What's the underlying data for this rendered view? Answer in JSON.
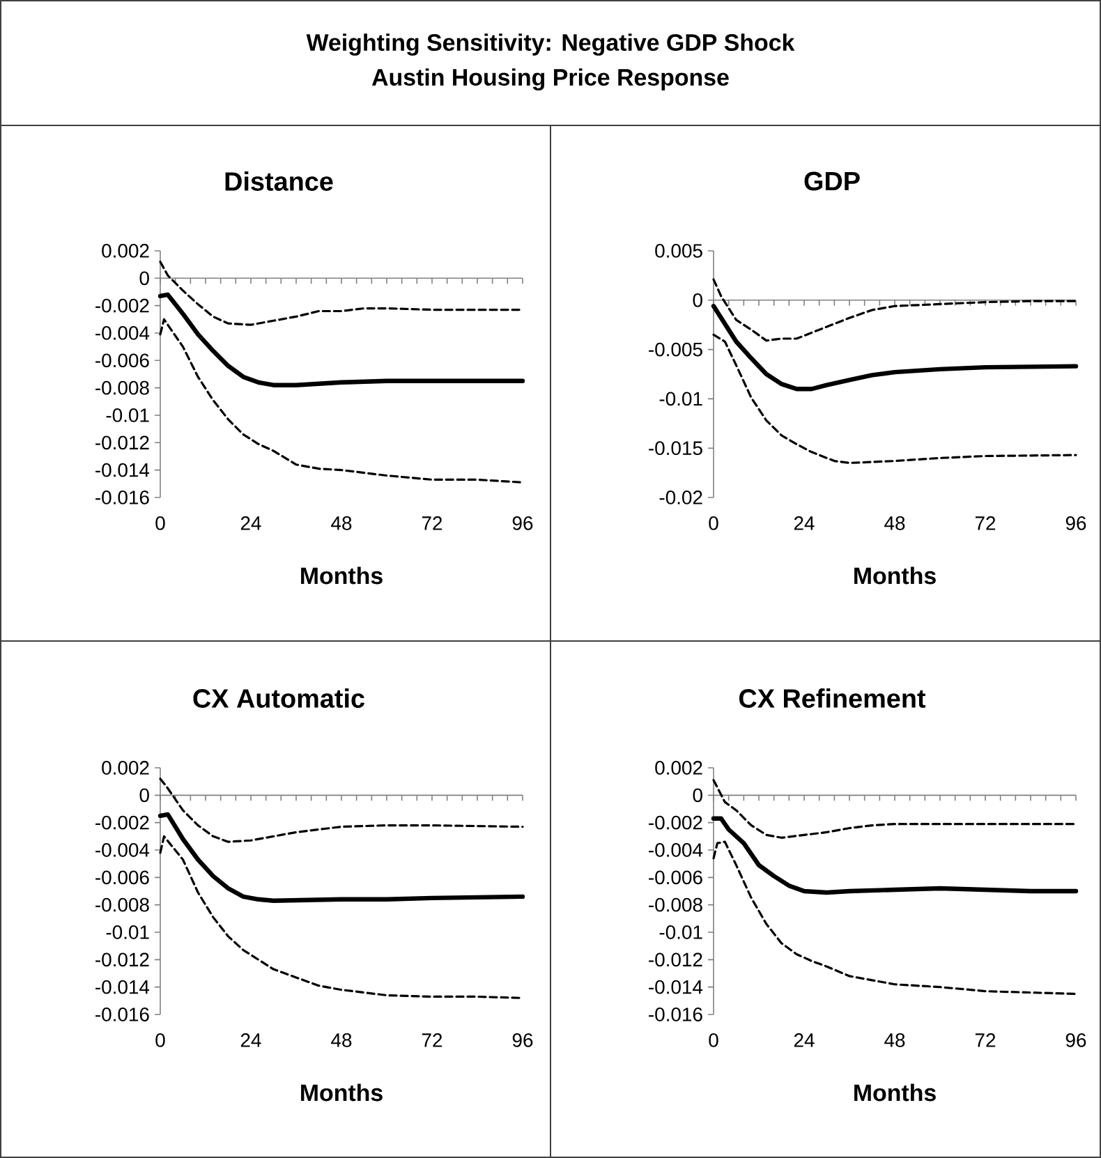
{
  "chart_data": [
    {
      "type": "other",
      "title": "Weighting Sensitivity: Negative GDP Shock",
      "subtitle": "Austin Housing Price Response"
    },
    {
      "type": "line",
      "title": "Distance",
      "xlabel": "Months",
      "xlim": [
        0,
        96
      ],
      "ylim": [
        -0.016,
        0.002
      ],
      "xticks": [
        0,
        {
          "value": 4,
          "label": null
        },
        {
          "value": 8,
          "label": null
        },
        {
          "value": 12,
          "label": null
        },
        {
          "value": 16,
          "label": null
        },
        {
          "value": 20,
          "label": null
        },
        24,
        {
          "value": 28,
          "label": null
        },
        {
          "value": 32,
          "label": null
        },
        {
          "value": 36,
          "label": null
        },
        {
          "value": 40,
          "label": null
        },
        {
          "value": 44,
          "label": null
        },
        48,
        {
          "value": 52,
          "label": null
        },
        {
          "value": 56,
          "label": null
        },
        {
          "value": 60,
          "label": null
        },
        {
          "value": 64,
          "label": null
        },
        {
          "value": 68,
          "label": null
        },
        72,
        {
          "value": 76,
          "label": null
        },
        {
          "value": 80,
          "label": null
        },
        {
          "value": 84,
          "label": null
        },
        {
          "value": 88,
          "label": null
        },
        {
          "value": 92,
          "label": null
        },
        96
      ],
      "yticks": [
        0.002,
        0,
        -0.002,
        -0.004,
        -0.006,
        -0.008,
        -0.01,
        -0.012,
        -0.014,
        -0.016
      ],
      "series": [
        {
          "color": "#000000",
          "line_style": "solid",
          "x": [
            0,
            2,
            6,
            10,
            14,
            18,
            22,
            26,
            30,
            36,
            48,
            60,
            72,
            96
          ],
          "values": [
            -0.0013,
            -0.0012,
            -0.0026,
            -0.0041,
            -0.0053,
            -0.0064,
            -0.0072,
            -0.0076,
            -0.0078,
            -0.0078,
            -0.0076,
            -0.0075,
            -0.0075,
            -0.0075
          ]
        },
        {
          "color": "#000000",
          "line_style": "dashed",
          "x": [
            0,
            2,
            6,
            10,
            14,
            18,
            24,
            30,
            36,
            42,
            48,
            54,
            60,
            72,
            96
          ],
          "values": [
            0.0012,
            0.0002,
            -0.0009,
            -0.0019,
            -0.0028,
            -0.0033,
            -0.0034,
            -0.0031,
            -0.0028,
            -0.0024,
            -0.0024,
            -0.0022,
            -0.0022,
            -0.0023,
            -0.0023
          ]
        },
        {
          "color": "#000000",
          "line_style": "dashed",
          "x": [
            0,
            1,
            6,
            10,
            14,
            18,
            22,
            26,
            30,
            36,
            42,
            48,
            60,
            72,
            84,
            96
          ],
          "values": [
            -0.0041,
            -0.003,
            -0.005,
            -0.0072,
            -0.0089,
            -0.0103,
            -0.0114,
            -0.0121,
            -0.0126,
            -0.0136,
            -0.0139,
            -0.014,
            -0.0144,
            -0.0147,
            -0.0147,
            -0.0149
          ]
        }
      ]
    },
    {
      "type": "line",
      "title": "GDP",
      "xlabel": "Months",
      "xlim": [
        0,
        96
      ],
      "ylim": [
        -0.02,
        0.005
      ],
      "xticks": [
        0,
        {
          "value": 4,
          "label": null
        },
        {
          "value": 8,
          "label": null
        },
        {
          "value": 12,
          "label": null
        },
        {
          "value": 16,
          "label": null
        },
        {
          "value": 20,
          "label": null
        },
        24,
        {
          "value": 28,
          "label": null
        },
        {
          "value": 32,
          "label": null
        },
        {
          "value": 36,
          "label": null
        },
        {
          "value": 40,
          "label": null
        },
        {
          "value": 44,
          "label": null
        },
        48,
        {
          "value": 52,
          "label": null
        },
        {
          "value": 56,
          "label": null
        },
        {
          "value": 60,
          "label": null
        },
        {
          "value": 64,
          "label": null
        },
        {
          "value": 68,
          "label": null
        },
        72,
        {
          "value": 76,
          "label": null
        },
        {
          "value": 80,
          "label": null
        },
        {
          "value": 84,
          "label": null
        },
        {
          "value": 88,
          "label": null
        },
        {
          "value": 92,
          "label": null
        },
        96
      ],
      "yticks": [
        0.005,
        0,
        -0.005,
        -0.01,
        -0.015,
        -0.02
      ],
      "series": [
        {
          "color": "#000000",
          "line_style": "solid",
          "x": [
            0,
            2,
            6,
            10,
            14,
            18,
            22,
            26,
            30,
            36,
            42,
            48,
            60,
            72,
            96
          ],
          "values": [
            -0.0006,
            -0.0018,
            -0.0042,
            -0.0059,
            -0.0075,
            -0.0085,
            -0.009,
            -0.009,
            -0.0086,
            -0.0081,
            -0.0076,
            -0.0073,
            -0.007,
            -0.0068,
            -0.0067
          ]
        },
        {
          "color": "#000000",
          "line_style": "dashed",
          "x": [
            0,
            2,
            6,
            10,
            14,
            18,
            22,
            30,
            36,
            42,
            48,
            60,
            72,
            84,
            96
          ],
          "values": [
            0.0021,
            0.0004,
            -0.002,
            -0.003,
            -0.0041,
            -0.0039,
            -0.0039,
            -0.0027,
            -0.0018,
            -0.001,
            -0.0006,
            -0.0004,
            -0.0002,
            -0.0001,
            -0.0001
          ]
        },
        {
          "color": "#000000",
          "line_style": "dashed",
          "x": [
            0,
            3,
            6,
            10,
            14,
            18,
            22,
            26,
            32,
            36,
            48,
            60,
            72,
            96
          ],
          "values": [
            -0.0035,
            -0.0042,
            -0.0066,
            -0.0099,
            -0.0122,
            -0.0137,
            -0.0146,
            -0.0154,
            -0.0163,
            -0.0165,
            -0.0163,
            -0.016,
            -0.0158,
            -0.0157
          ]
        }
      ]
    },
    {
      "type": "line",
      "title": "CX Automatic",
      "xlabel": "Months",
      "xlim": [
        0,
        96
      ],
      "ylim": [
        -0.016,
        0.002
      ],
      "xticks": [
        0,
        {
          "value": 4,
          "label": null
        },
        {
          "value": 8,
          "label": null
        },
        {
          "value": 12,
          "label": null
        },
        {
          "value": 16,
          "label": null
        },
        {
          "value": 20,
          "label": null
        },
        24,
        {
          "value": 28,
          "label": null
        },
        {
          "value": 32,
          "label": null
        },
        {
          "value": 36,
          "label": null
        },
        {
          "value": 40,
          "label": null
        },
        {
          "value": 44,
          "label": null
        },
        48,
        {
          "value": 52,
          "label": null
        },
        {
          "value": 56,
          "label": null
        },
        {
          "value": 60,
          "label": null
        },
        {
          "value": 64,
          "label": null
        },
        {
          "value": 68,
          "label": null
        },
        72,
        {
          "value": 76,
          "label": null
        },
        {
          "value": 80,
          "label": null
        },
        {
          "value": 84,
          "label": null
        },
        {
          "value": 88,
          "label": null
        },
        {
          "value": 92,
          "label": null
        },
        96
      ],
      "yticks": [
        0.002,
        0,
        -0.002,
        -0.004,
        -0.006,
        -0.008,
        -0.01,
        -0.012,
        -0.014,
        -0.016
      ],
      "series": [
        {
          "color": "#000000",
          "line_style": "solid",
          "x": [
            0,
            2,
            6,
            10,
            14,
            18,
            22,
            26,
            30,
            48,
            60,
            72,
            96
          ],
          "values": [
            -0.0015,
            -0.0014,
            -0.0032,
            -0.0047,
            -0.0059,
            -0.0068,
            -0.0074,
            -0.0076,
            -0.0077,
            -0.0076,
            -0.0076,
            -0.0075,
            -0.0074
          ]
        },
        {
          "color": "#000000",
          "line_style": "dashed",
          "x": [
            0,
            2,
            6,
            10,
            14,
            18,
            24,
            30,
            36,
            42,
            48,
            60,
            72,
            96
          ],
          "values": [
            0.0012,
            0.0005,
            -0.0011,
            -0.0022,
            -0.003,
            -0.0034,
            -0.0033,
            -0.003,
            -0.0027,
            -0.0025,
            -0.0023,
            -0.0022,
            -0.0022,
            -0.0023
          ]
        },
        {
          "color": "#000000",
          "line_style": "dashed",
          "x": [
            0,
            1,
            6,
            10,
            14,
            18,
            22,
            26,
            30,
            36,
            42,
            48,
            60,
            72,
            84,
            96
          ],
          "values": [
            -0.0042,
            -0.003,
            -0.0047,
            -0.0071,
            -0.0089,
            -0.0103,
            -0.0113,
            -0.012,
            -0.0127,
            -0.0133,
            -0.0139,
            -0.0142,
            -0.0146,
            -0.0147,
            -0.0147,
            -0.0148
          ]
        }
      ]
    },
    {
      "type": "line",
      "title": "CX Refinement",
      "xlabel": "Months",
      "xlim": [
        0,
        96
      ],
      "ylim": [
        -0.016,
        0.002
      ],
      "xticks": [
        0,
        {
          "value": 4,
          "label": null
        },
        {
          "value": 8,
          "label": null
        },
        {
          "value": 12,
          "label": null
        },
        {
          "value": 16,
          "label": null
        },
        {
          "value": 20,
          "label": null
        },
        24,
        {
          "value": 28,
          "label": null
        },
        {
          "value": 32,
          "label": null
        },
        {
          "value": 36,
          "label": null
        },
        {
          "value": 40,
          "label": null
        },
        {
          "value": 44,
          "label": null
        },
        48,
        {
          "value": 52,
          "label": null
        },
        {
          "value": 56,
          "label": null
        },
        {
          "value": 60,
          "label": null
        },
        {
          "value": 64,
          "label": null
        },
        {
          "value": 68,
          "label": null
        },
        72,
        {
          "value": 76,
          "label": null
        },
        {
          "value": 80,
          "label": null
        },
        {
          "value": 84,
          "label": null
        },
        {
          "value": 88,
          "label": null
        },
        {
          "value": 92,
          "label": null
        },
        96
      ],
      "yticks": [
        0.002,
        0,
        -0.002,
        -0.004,
        -0.006,
        -0.008,
        -0.01,
        -0.012,
        -0.014,
        -0.016
      ],
      "series": [
        {
          "color": "#000000",
          "line_style": "solid",
          "x": [
            0,
            2,
            4,
            8,
            12,
            16,
            20,
            24,
            30,
            36,
            48,
            60,
            72,
            84,
            96
          ],
          "values": [
            -0.0017,
            -0.0017,
            -0.0025,
            -0.0035,
            -0.0051,
            -0.0059,
            -0.0066,
            -0.007,
            -0.0071,
            -0.007,
            -0.0069,
            -0.0068,
            -0.0069,
            -0.007,
            -0.007
          ]
        },
        {
          "color": "#000000",
          "line_style": "dashed",
          "x": [
            0,
            3,
            6,
            10,
            14,
            18,
            24,
            30,
            36,
            42,
            48,
            60,
            72,
            96
          ],
          "values": [
            0.0011,
            -0.0005,
            -0.0011,
            -0.0022,
            -0.0029,
            -0.0031,
            -0.0029,
            -0.0027,
            -0.0024,
            -0.0022,
            -0.0021,
            -0.0021,
            -0.0021,
            -0.0021
          ]
        },
        {
          "color": "#000000",
          "line_style": "dashed",
          "x": [
            0,
            1,
            3,
            6,
            10,
            14,
            18,
            22,
            26,
            30,
            36,
            42,
            48,
            60,
            72,
            84,
            96
          ],
          "values": [
            -0.0046,
            -0.0035,
            -0.0034,
            -0.0051,
            -0.0075,
            -0.0094,
            -0.0108,
            -0.0116,
            -0.0121,
            -0.0125,
            -0.0132,
            -0.0135,
            -0.0138,
            -0.014,
            -0.0143,
            -0.0144,
            -0.0145
          ]
        }
      ]
    }
  ]
}
